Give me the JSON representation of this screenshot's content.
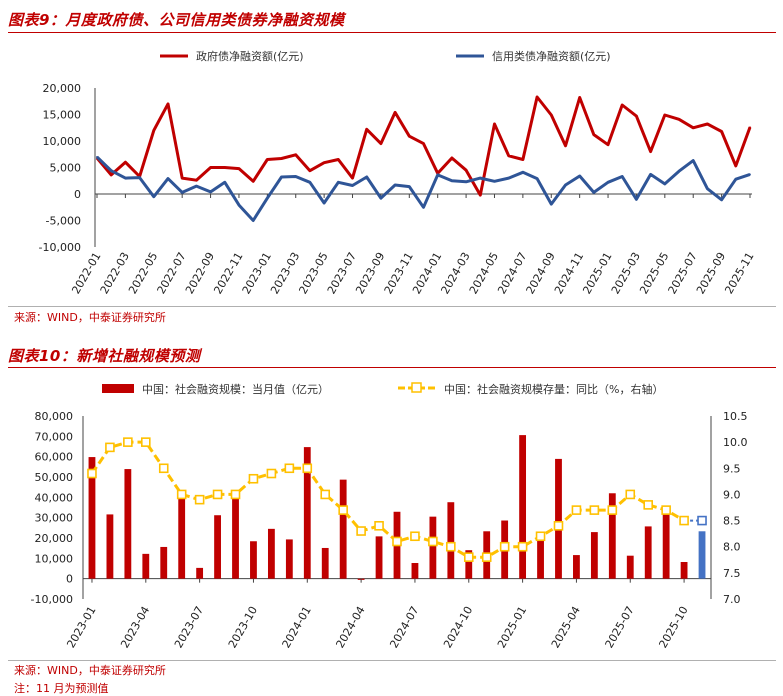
{
  "figure9": {
    "title": "图表9：月度政府债、公司信用类债券净融资规模",
    "source": "来源：WIND，中泰证券研究所",
    "chart_data": {
      "type": "line",
      "x": [
        "2022-01",
        "2022-02",
        "2022-03",
        "2022-04",
        "2022-05",
        "2022-06",
        "2022-07",
        "2022-08",
        "2022-09",
        "2022-10",
        "2022-11",
        "2022-12",
        "2023-01",
        "2023-02",
        "2023-03",
        "2023-04",
        "2023-05",
        "2023-06",
        "2023-07",
        "2023-08",
        "2023-09",
        "2023-10",
        "2023-11",
        "2023-12",
        "2024-01",
        "2024-02",
        "2024-03",
        "2024-04",
        "2024-05",
        "2024-06",
        "2024-07",
        "2024-08",
        "2024-09",
        "2024-10",
        "2024-11",
        "2024-12",
        "2025-01",
        "2025-02",
        "2025-03",
        "2025-04",
        "2025-05",
        "2025-06",
        "2025-07",
        "2025-08",
        "2025-09",
        "2025-10",
        "2025-11"
      ],
      "xticks": [
        "2022-01",
        "2022-03",
        "2022-05",
        "2022-07",
        "2022-09",
        "2022-11",
        "2023-01",
        "2023-03",
        "2023-05",
        "2023-07",
        "2023-09",
        "2023-11",
        "2024-01",
        "2024-03",
        "2024-05",
        "2024-07",
        "2024-09",
        "2024-11",
        "2025-01",
        "2025-03",
        "2025-05",
        "2025-07",
        "2025-09",
        "2025-11"
      ],
      "ylim": [
        -10000,
        20000
      ],
      "yticks": [
        -10000,
        -5000,
        0,
        5000,
        10000,
        15000,
        20000
      ],
      "ytick_labels": [
        "-10,000",
        "-5,000",
        "0",
        "5,000",
        "10,000",
        "15,000",
        "20,000"
      ],
      "legend_position": "top",
      "series": [
        {
          "name": "政府债净融资额(亿元)",
          "color": "#c00000",
          "values": [
            6800,
            3600,
            6000,
            3300,
            12000,
            17000,
            3000,
            2600,
            5000,
            5000,
            4800,
            2400,
            6500,
            6700,
            7400,
            4400,
            5900,
            6500,
            3000,
            12200,
            9500,
            15400,
            10900,
            9500,
            3900,
            6800,
            4500,
            -200,
            13200,
            7200,
            6500,
            18300,
            14900,
            9100,
            18200,
            11200,
            9300,
            16800,
            14700,
            8000,
            14900,
            14100,
            12500,
            13200,
            11800,
            5300,
            12600
          ]
        },
        {
          "name": "信用类债净融资额(亿元)",
          "color": "#2f5597",
          "values": [
            7000,
            4400,
            3000,
            3100,
            -500,
            2900,
            300,
            1500,
            400,
            2200,
            -2100,
            -5000,
            -800,
            3200,
            3300,
            2200,
            -1700,
            2200,
            1600,
            3200,
            -800,
            1700,
            1400,
            -2500,
            3600,
            2500,
            2300,
            3000,
            2400,
            3000,
            4100,
            2900,
            -1900,
            1700,
            3400,
            300,
            2200,
            3300,
            -1000,
            3700,
            1900,
            4300,
            6300,
            1000,
            -1100,
            2800,
            3700
          ]
        }
      ]
    }
  },
  "figure10": {
    "title": "图表10：新增社融规模预测",
    "source": "来源：WIND，中泰证券研究所",
    "note": "注：11 月为预测值",
    "chart_data": {
      "type": "bar",
      "x": [
        "2023-01",
        "2023-02",
        "2023-03",
        "2023-04",
        "2023-05",
        "2023-06",
        "2023-07",
        "2023-08",
        "2023-09",
        "2023-10",
        "2023-11",
        "2023-12",
        "2024-01",
        "2024-02",
        "2024-03",
        "2024-04",
        "2024-05",
        "2024-06",
        "2024-07",
        "2024-08",
        "2024-09",
        "2024-10",
        "2024-11",
        "2024-12",
        "2025-01",
        "2025-02",
        "2025-03",
        "2025-04",
        "2025-05",
        "2025-06",
        "2025-07",
        "2025-08",
        "2025-09",
        "2025-10",
        "2025-11"
      ],
      "xticks": [
        "2023-01",
        "2023-04",
        "2023-07",
        "2023-10",
        "2024-01",
        "2024-04",
        "2024-07",
        "2024-10",
        "2025-01",
        "2025-04",
        "2025-07",
        "2025-10"
      ],
      "ylim": [
        -10000,
        80000
      ],
      "yticks": [
        -10000,
        0,
        10000,
        20000,
        30000,
        40000,
        50000,
        60000,
        70000,
        80000
      ],
      "ytick_labels": [
        "-10,000",
        "0",
        "10,000",
        "20,000",
        "30,000",
        "40,000",
        "50,000",
        "60,000",
        "70,000",
        "80,000"
      ],
      "y2lim": [
        7.0,
        10.5
      ],
      "y2ticks": [
        "7.0",
        "7.5",
        "8.0",
        "8.5",
        "9.0",
        "9.5",
        "10.0",
        "10.5"
      ],
      "legend_position": "top",
      "forecast_from_index": 34,
      "series": [
        {
          "name": "中国：社会融资规模：当月值（亿元）",
          "type": "bar",
          "color": "#c00000",
          "forecast_color": "#4472c4",
          "values": [
            59800,
            31600,
            53900,
            12200,
            15600,
            42100,
            5300,
            31200,
            41300,
            18400,
            24500,
            19300,
            64700,
            15100,
            48700,
            -600,
            20800,
            32900,
            7700,
            30500,
            37600,
            14000,
            23300,
            28600,
            70600,
            22600,
            58900,
            11600,
            22900,
            42000,
            11300,
            25700,
            35300,
            8200,
            23300
          ]
        },
        {
          "name": "中国：社会融资规模存量：同比（%，右轴）",
          "type": "line",
          "axis": "right",
          "color": "#ffc000",
          "forecast_color": "#4472c4",
          "values": [
            9.4,
            9.9,
            10.0,
            10.0,
            9.5,
            9.0,
            8.9,
            9.0,
            9.0,
            9.3,
            9.4,
            9.5,
            9.5,
            9.0,
            8.7,
            8.3,
            8.4,
            8.1,
            8.2,
            8.1,
            8.0,
            7.8,
            7.8,
            8.0,
            8.0,
            8.2,
            8.4,
            8.7,
            8.7,
            8.7,
            9.0,
            8.8,
            8.7,
            8.5,
            8.5
          ]
        }
      ]
    }
  }
}
